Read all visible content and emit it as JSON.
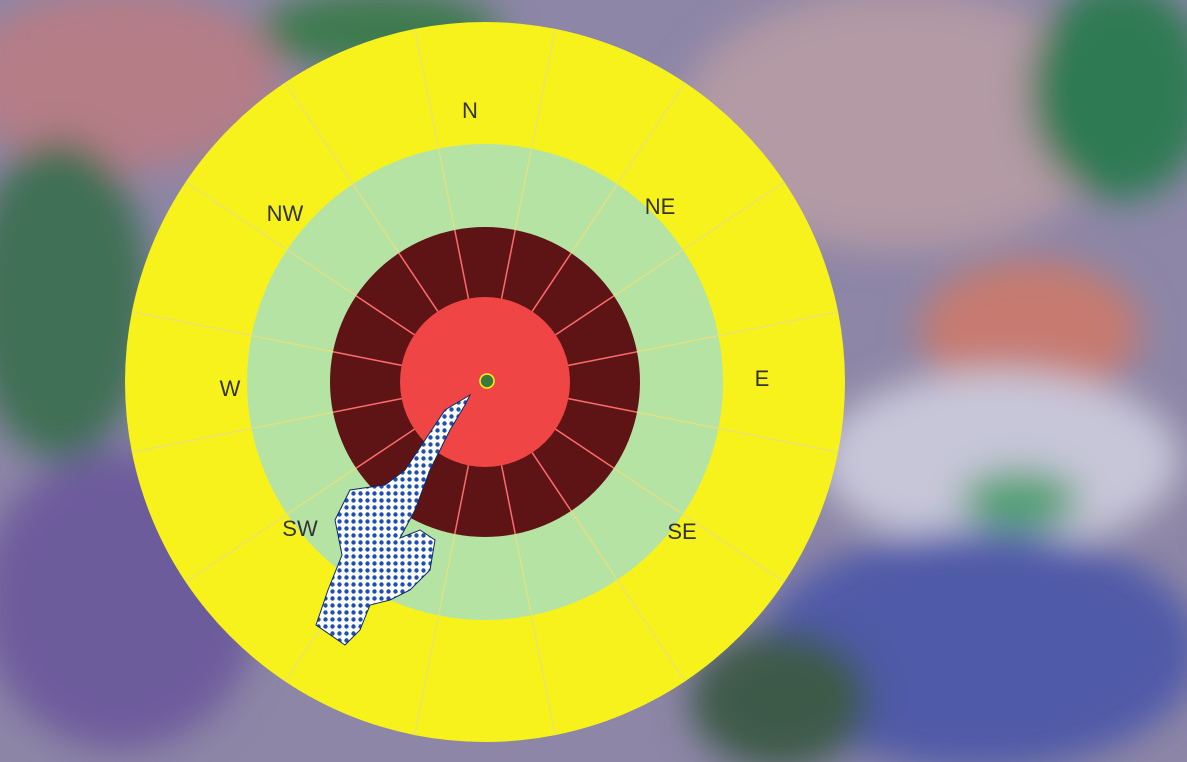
{
  "compass": {
    "labels": [
      "N",
      "NE",
      "E",
      "SE",
      "SW",
      "W",
      "NW"
    ]
  }
}
